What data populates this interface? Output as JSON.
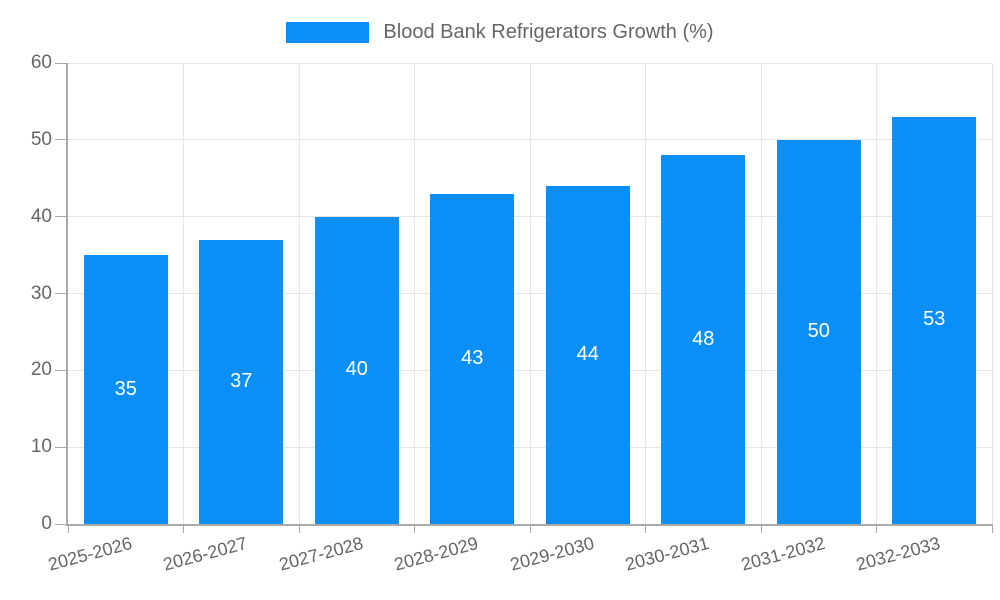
{
  "legend": {
    "label": "Blood Bank Refrigerators Growth (%)"
  },
  "chart_data": {
    "type": "bar",
    "title": "Blood Bank Refrigerators Growth (%)",
    "categories": [
      "2025-2026",
      "2026-2027",
      "2027-2028",
      "2028-2029",
      "2029-2030",
      "2030-2031",
      "2031-2032",
      "2032-2033"
    ],
    "values": [
      35,
      37,
      40,
      43,
      44,
      48,
      50,
      53
    ],
    "value_labels": [
      "35",
      "37",
      "40",
      "43",
      "44",
      "48",
      "50",
      "53"
    ],
    "xlabel": "",
    "ylabel": "",
    "ylim": [
      0,
      60
    ],
    "yticks": [
      0,
      10,
      20,
      30,
      40,
      50,
      60
    ],
    "grid": true,
    "legend_position": "top",
    "x_label_rotation_deg": -15
  },
  "colors": {
    "bar": "#0a8ff9",
    "grid": "#e6e6e6",
    "axis": "#a9a9a9",
    "tick_text": "#666666",
    "value_label": "#ffffff",
    "background": "#ffffff"
  }
}
